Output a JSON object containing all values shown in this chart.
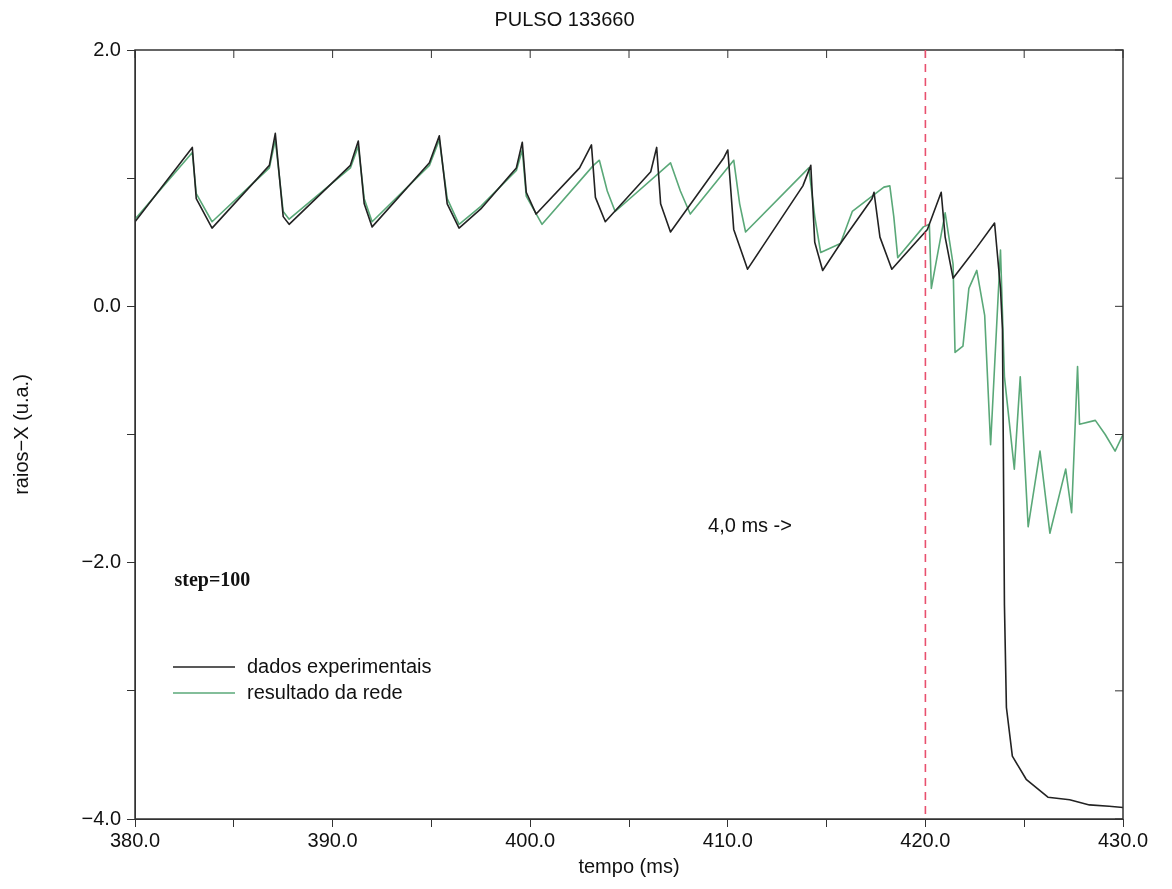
{
  "chart_data": {
    "type": "line",
    "title": "PULSO 133660",
    "xlabel": "tempo (ms)",
    "ylabel": "raios−X (u.a.)",
    "xlim": [
      380,
      430
    ],
    "ylim": [
      -4,
      2
    ],
    "xticks": [
      {
        "value": 380,
        "label": "380.0"
      },
      {
        "value": 385,
        "label": null
      },
      {
        "value": 390,
        "label": "390.0"
      },
      {
        "value": 395,
        "label": null
      },
      {
        "value": 400,
        "label": "400.0"
      },
      {
        "value": 405,
        "label": null
      },
      {
        "value": 410,
        "label": "410.0"
      },
      {
        "value": 415,
        "label": null
      },
      {
        "value": 420,
        "label": "420.0"
      },
      {
        "value": 425,
        "label": null
      },
      {
        "value": 430,
        "label": "430.0"
      }
    ],
    "yticks": [
      {
        "value": -4,
        "label": "−4.0"
      },
      {
        "value": -3,
        "label": null
      },
      {
        "value": -2,
        "label": "−2.0"
      },
      {
        "value": -1,
        "label": null
      },
      {
        "value": 0,
        "label": "0.0"
      },
      {
        "value": 1,
        "label": null
      },
      {
        "value": 2,
        "label": "2.0"
      }
    ],
    "grid": false,
    "legend": "bottom left",
    "marker": "none",
    "line_style": "solid",
    "ref_lines": [
      {
        "axis": "x",
        "value": 420,
        "color": "#e8506e",
        "line_style": "dashed"
      }
    ],
    "annotations": [
      "step=100",
      "4,0 ms ->"
    ],
    "series": [
      {
        "name": "dados experimentais",
        "color": "#222222",
        "x": [
          380,
          382.9,
          383.1,
          383.9,
          386.8,
          387.1,
          387.5,
          387.8,
          390.9,
          391.3,
          391.6,
          392,
          394.9,
          395.4,
          395.8,
          396.4,
          397.5,
          399.3,
          399.6,
          399.8,
          400.3,
          402.5,
          403.1,
          403.3,
          403.8,
          406.1,
          406.4,
          406.6,
          407.1,
          409.8,
          410,
          410.3,
          411,
          413.8,
          414.2,
          414.4,
          414.8,
          415.7,
          417.3,
          417.4,
          417.7,
          418.3,
          420.1,
          420.8,
          421,
          421.4,
          422.6,
          423.5,
          423.8,
          423.9,
          424,
          424.1,
          424.4,
          425.1,
          426.2,
          427.3,
          428.3,
          429.3,
          430
        ],
        "values": [
          0.66,
          1.24,
          0.84,
          0.61,
          1.1,
          1.35,
          0.7,
          0.64,
          1.1,
          1.29,
          0.8,
          0.62,
          1.12,
          1.33,
          0.8,
          0.61,
          0.76,
          1.08,
          1.28,
          0.89,
          0.72,
          1.08,
          1.26,
          0.85,
          0.66,
          1.05,
          1.24,
          0.8,
          0.58,
          1.16,
          1.22,
          0.6,
          0.29,
          0.94,
          1.1,
          0.5,
          0.28,
          0.49,
          0.84,
          0.89,
          0.54,
          0.29,
          0.6,
          0.89,
          0.54,
          0.22,
          0.46,
          0.65,
          0.14,
          -0.18,
          -2.33,
          -3.13,
          -3.51,
          -3.69,
          -3.83,
          -3.85,
          -3.89,
          -3.9,
          -3.91
        ]
      },
      {
        "name": "resultado da rede",
        "color": "#5aa878",
        "x": [
          380,
          382.9,
          383.1,
          383.9,
          386.8,
          387.1,
          387.5,
          387.8,
          390.9,
          391.3,
          391.6,
          392,
          394.9,
          395.4,
          395.8,
          396.4,
          397.5,
          399.3,
          399.6,
          399.8,
          400.6,
          403.2,
          403.5,
          403.9,
          404.3,
          407.1,
          407.6,
          408.1,
          410.3,
          410.6,
          410.9,
          414.1,
          414.4,
          414.7,
          415.7,
          416.3,
          417.9,
          418.2,
          418.4,
          418.6,
          419.9,
          420.2,
          420.3,
          421,
          421.4,
          421.5,
          421.9,
          422.2,
          422.6,
          423,
          423.3,
          423.8,
          424,
          424.5,
          424.8,
          425.2,
          425.8,
          426.3,
          427.1,
          427.4,
          427.7,
          427.8,
          428.6,
          429.1,
          429.6,
          430
        ],
        "values": [
          0.68,
          1.2,
          0.88,
          0.66,
          1.08,
          1.3,
          0.74,
          0.68,
          1.08,
          1.25,
          0.84,
          0.66,
          1.1,
          1.3,
          0.84,
          0.64,
          0.78,
          1.06,
          1.22,
          0.86,
          0.64,
          1.1,
          1.14,
          0.9,
          0.74,
          1.12,
          0.9,
          0.72,
          1.14,
          0.8,
          0.58,
          1.08,
          0.7,
          0.42,
          0.49,
          0.74,
          0.93,
          0.94,
          0.7,
          0.38,
          0.62,
          0.64,
          0.14,
          0.73,
          0.33,
          -0.36,
          -0.31,
          0.14,
          0.28,
          -0.07,
          -1.08,
          0.44,
          -0.55,
          -1.27,
          -0.55,
          -1.72,
          -1.13,
          -1.77,
          -1.27,
          -1.61,
          -0.47,
          -0.92,
          -0.89,
          -1,
          -1.13,
          -1
        ]
      }
    ]
  }
}
